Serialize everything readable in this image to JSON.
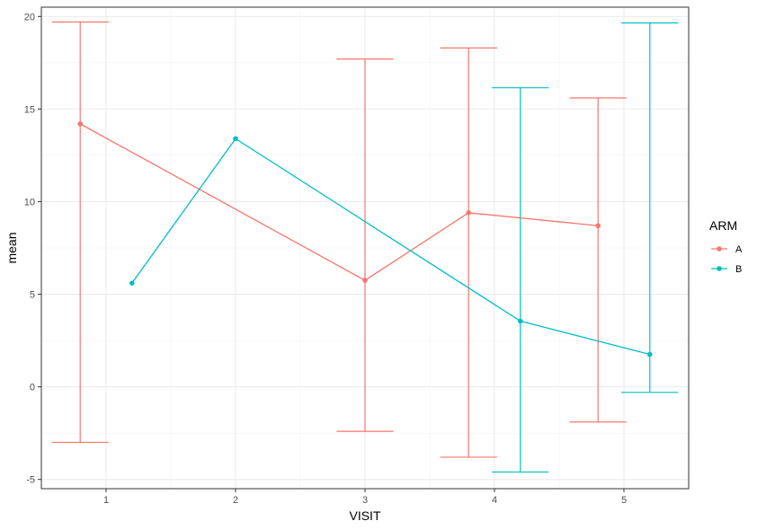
{
  "chart_data": {
    "type": "line",
    "xlabel": "VISIT",
    "ylabel": "mean",
    "xlim": [
      0.5,
      5.5
    ],
    "ylim": [
      -5.5,
      20.5
    ],
    "x_ticks": [
      1,
      2,
      3,
      4,
      5
    ],
    "y_ticks": [
      -5,
      0,
      5,
      10,
      15,
      20
    ],
    "x_tick_labels": [
      "1",
      "2",
      "3",
      "4",
      "5"
    ],
    "y_tick_labels": [
      "-5",
      "0",
      "5",
      "10",
      "15",
      "20"
    ],
    "grid": true,
    "legend": {
      "title": "ARM",
      "placement": "right"
    },
    "series": [
      {
        "name": "A",
        "color": "#F8766D",
        "x": [
          0.8,
          3,
          3.8,
          4.8
        ],
        "mean": [
          14.2,
          5.75,
          9.4,
          8.7
        ],
        "lower": [
          -3.0,
          -2.4,
          -3.8,
          -1.9
        ],
        "upper": [
          19.7,
          17.7,
          18.3,
          15.6
        ]
      },
      {
        "name": "B",
        "color": "#00BFC4",
        "x": [
          1.2,
          2,
          4.2,
          5.2
        ],
        "mean": [
          5.6,
          13.4,
          3.55,
          1.75
        ],
        "lower": [
          null,
          null,
          -4.6,
          -0.3
        ],
        "upper": [
          null,
          null,
          16.15,
          19.65
        ]
      }
    ]
  }
}
